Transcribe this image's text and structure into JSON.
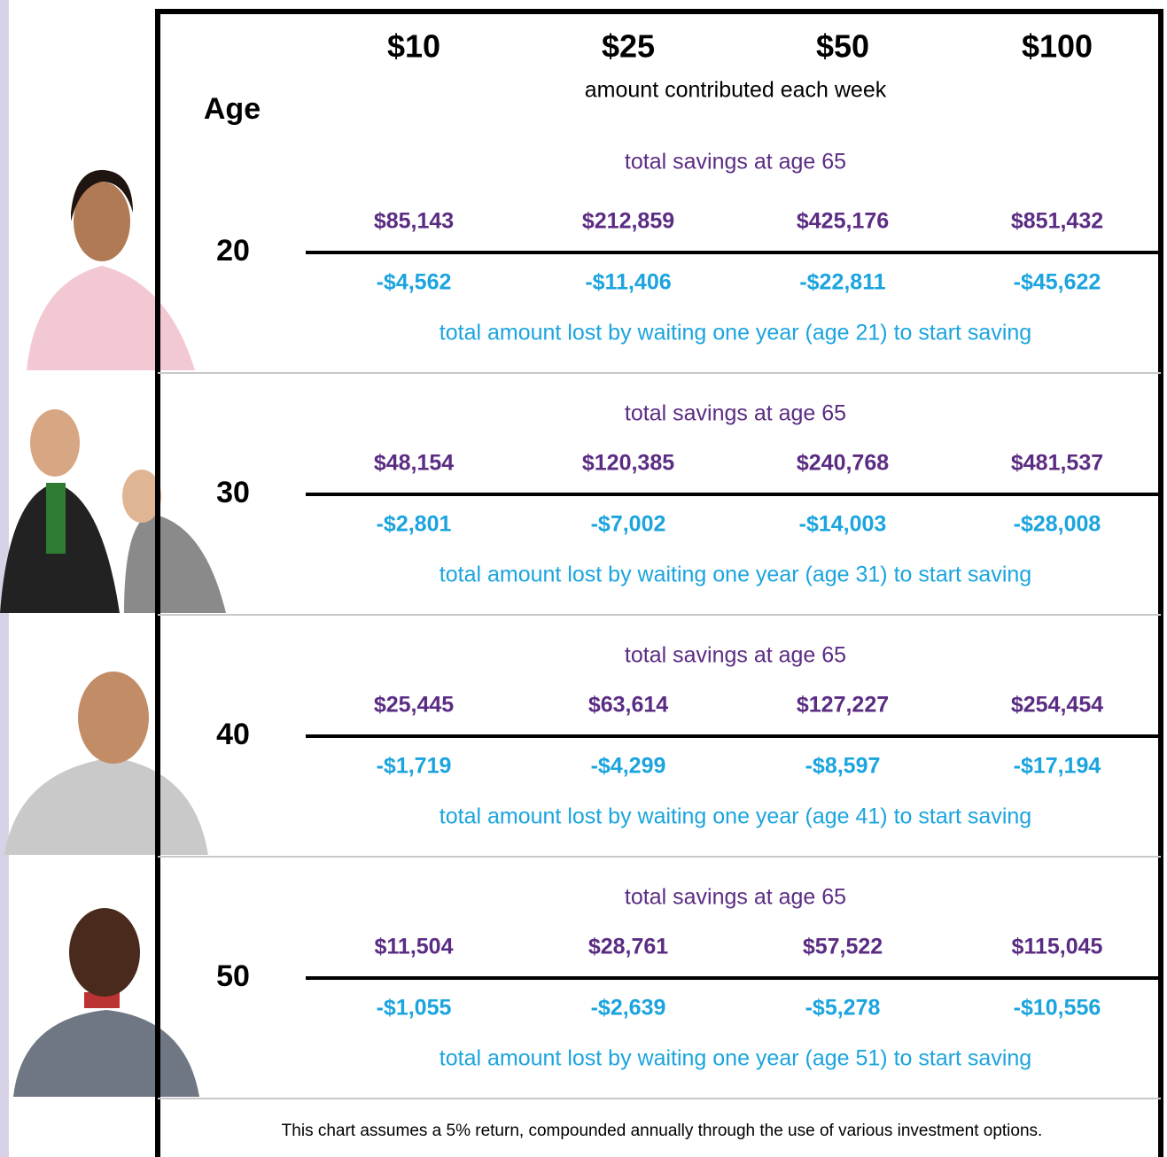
{
  "header": {
    "age_label": "Age",
    "amounts": [
      "$10",
      "$25",
      "$50",
      "$100"
    ],
    "amounts_caption": "amount contributed each week"
  },
  "rows": [
    {
      "age": "20",
      "savings_label": "total savings at age 65",
      "savings": [
        "$85,143",
        "$212,859",
        "$425,176",
        "$851,432"
      ],
      "losses": [
        "-$4,562",
        "-$11,406",
        "-$22,811",
        "-$45,622"
      ],
      "loss_label": "total amount lost by waiting one year (age 21) to start saving"
    },
    {
      "age": "30",
      "savings_label": "total savings at age 65",
      "savings": [
        "$48,154",
        "$120,385",
        "$240,768",
        "$481,537"
      ],
      "losses": [
        "-$2,801",
        "-$7,002",
        "-$14,003",
        "-$28,008"
      ],
      "loss_label": "total amount lost by waiting one year (age 31) to start saving"
    },
    {
      "age": "40",
      "savings_label": "total savings at age 65",
      "savings": [
        "$25,445",
        "$63,614",
        "$127,227",
        "$254,454"
      ],
      "losses": [
        "-$1,719",
        "-$4,299",
        "-$8,597",
        "-$17,194"
      ],
      "loss_label": "total amount lost by waiting one year (age 41) to start saving"
    },
    {
      "age": "50",
      "savings_label": "total savings at age 65",
      "savings": [
        "$11,504",
        "$28,761",
        "$57,522",
        "$115,045"
      ],
      "losses": [
        "-$1,055",
        "-$2,639",
        "-$5,278",
        "-$10,556"
      ],
      "loss_label": "total amount lost by waiting one year (age 51) to start saving"
    }
  ],
  "footnote": "This chart assumes a 5% return, compounded annually through the use of various investment options."
}
